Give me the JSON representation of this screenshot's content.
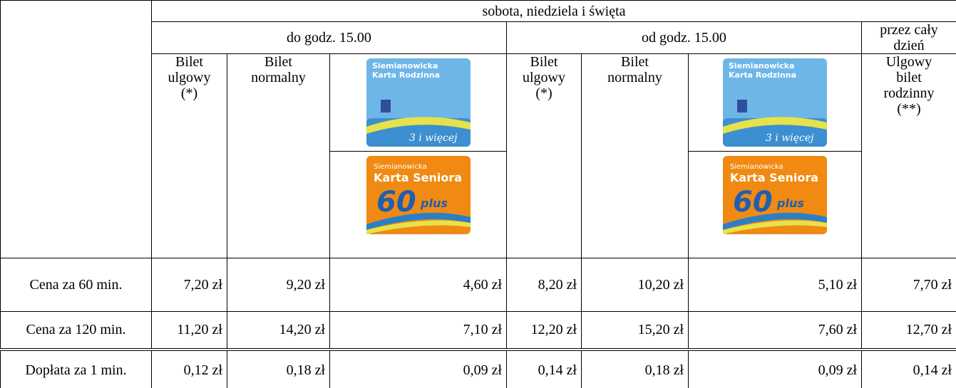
{
  "header": {
    "group": "sobota, niedziela i święta",
    "periods": [
      "do godz. 15.00",
      "od godz. 15.00",
      "przez cały dzień"
    ],
    "columns": [
      [
        "Bilet",
        "ulgowy",
        "(*)"
      ],
      [
        "Bilet",
        "normalny"
      ],
      null,
      [
        "Bilet",
        "ulgowy",
        "(*)"
      ],
      [
        "Bilet",
        "normalny"
      ],
      null,
      [
        "Ulgowy",
        "bilet",
        "rodzinny",
        "(**)"
      ]
    ],
    "cards": {
      "family": [
        "Siemianowicka",
        "Karta Rodzinna",
        "3 i więcej"
      ],
      "senior": [
        "Siemianowicka",
        "Karta Seniora",
        "60",
        "plus"
      ]
    }
  },
  "table": {
    "rows": [
      {
        "label": "Cena za 60 min.",
        "cells": [
          "7,20 zł",
          "9,20 zł",
          "4,60 zł",
          "8,20 zł",
          "10,20 zł",
          "5,10 zł",
          "7,70 zł"
        ]
      },
      {
        "label": "Cena za 120 min.",
        "cells": [
          "11,20 zł",
          "14,20 zł",
          "7,10 zł",
          "12,20 zł",
          "15,20 zł",
          "7,60 zł",
          "12,70 zł"
        ]
      },
      {
        "label": "Dopłata za 1 min.",
        "cells": [
          "0,12 zł",
          "0,18 zł",
          "0,09 zł",
          "0,14 zł",
          "0,18 zł",
          "0,09 zł",
          "0,14 zł"
        ]
      }
    ]
  }
}
